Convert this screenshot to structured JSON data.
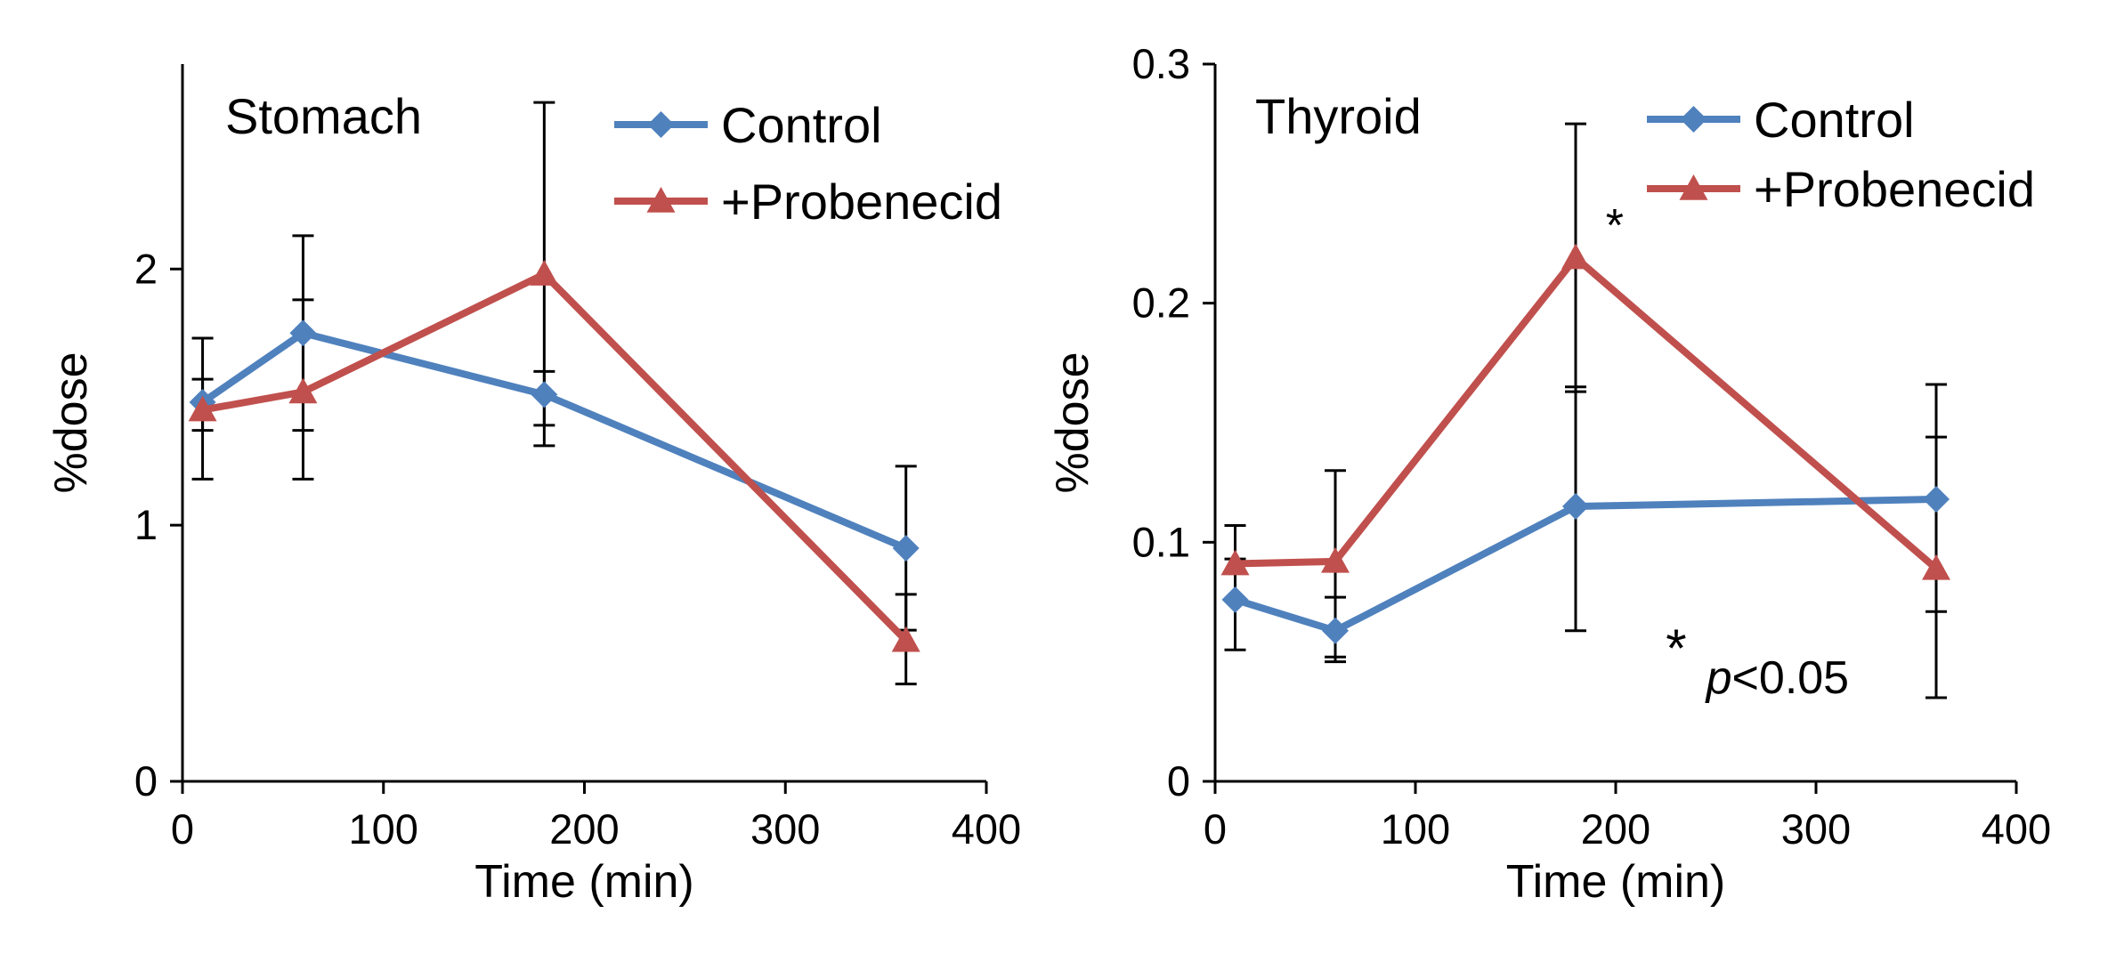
{
  "chart_data": [
    {
      "type": "line",
      "title": "Stomach",
      "xlabel": "Time (min)",
      "ylabel": "%dose",
      "xlim": [
        0,
        400
      ],
      "ylim": [
        0,
        2.8
      ],
      "xticks": [
        0,
        100,
        200,
        300,
        400
      ],
      "yticks": [
        0,
        1,
        2
      ],
      "x": [
        10,
        60,
        180,
        360
      ],
      "legend": "top-right",
      "series": [
        {
          "name": "Control",
          "color": "#4f81bd",
          "marker": "diamond",
          "values": [
            1.48,
            1.75,
            1.51,
            0.91
          ],
          "error_low": [
            1.37,
            1.37,
            1.39,
            0.59
          ],
          "error_high": [
            1.57,
            2.13,
            1.6,
            1.23
          ]
        },
        {
          "name": "+Probenecid",
          "color": "#c0504d",
          "marker": "triangle",
          "values": [
            1.45,
            1.52,
            1.98,
            0.55
          ],
          "error_low": [
            1.18,
            1.18,
            1.31,
            0.38
          ],
          "error_high": [
            1.73,
            1.88,
            2.65,
            0.73
          ]
        }
      ],
      "annotations": []
    },
    {
      "type": "line",
      "title": "Thyroid",
      "xlabel": "Time (min)",
      "ylabel": "%dose",
      "xlim": [
        0,
        400
      ],
      "ylim": [
        0,
        0.3
      ],
      "xticks": [
        0,
        100,
        200,
        300,
        400
      ],
      "yticks": [
        0,
        0.1,
        0.2,
        0.3
      ],
      "x": [
        10,
        60,
        180,
        360
      ],
      "legend": "top-right",
      "series": [
        {
          "name": "Control",
          "color": "#4f81bd",
          "marker": "diamond",
          "values": [
            0.076,
            0.063,
            0.115,
            0.118
          ],
          "error_low": [
            0.055,
            0.052,
            0.063,
            0.071
          ],
          "error_high": [
            0.093,
            0.077,
            0.165,
            0.166
          ]
        },
        {
          "name": "+Probenecid",
          "color": "#c0504d",
          "marker": "triangle",
          "values": [
            0.091,
            0.092,
            0.219,
            0.089
          ],
          "error_low": [
            0.076,
            0.05,
            0.163,
            0.035
          ],
          "error_high": [
            0.107,
            0.13,
            0.275,
            0.144
          ]
        }
      ],
      "annotations": [
        {
          "text": "*",
          "x": 195,
          "y": 0.226
        },
        {
          "text": "* p<0.05",
          "star": "*",
          "italic": "p",
          "rest": "<0.05",
          "x": 225,
          "y": 0.045
        }
      ]
    }
  ]
}
